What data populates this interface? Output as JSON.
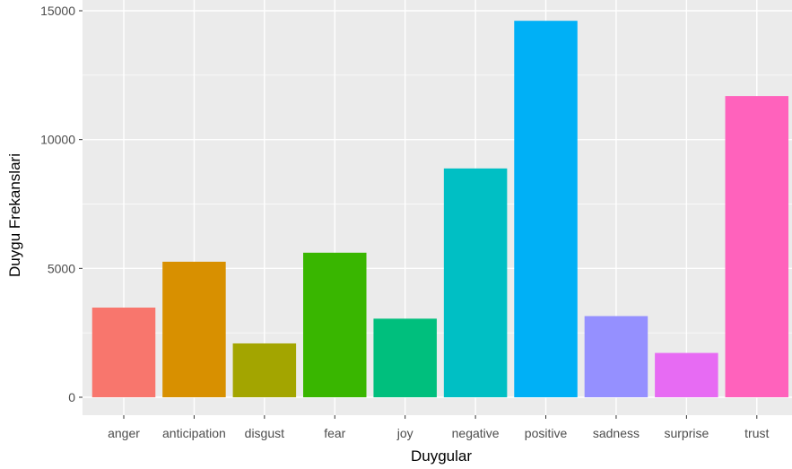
{
  "chart_data": {
    "type": "bar",
    "xlabel": "Duygular",
    "ylabel": "Duygu Frekanslari",
    "categories": [
      "anger",
      "anticipation",
      "disgust",
      "fear",
      "joy",
      "negative",
      "positive",
      "sadness",
      "surprise",
      "trust"
    ],
    "values": [
      3480,
      5260,
      2090,
      5610,
      3050,
      8880,
      14610,
      3150,
      1720,
      11690
    ],
    "colors": [
      "#F8766D",
      "#D89000",
      "#A3A500",
      "#39B600",
      "#00BF7D",
      "#00BFC4",
      "#00B0F6",
      "#9590FF",
      "#E76BF3",
      "#FF62BC"
    ],
    "y_ticks": [
      0,
      5000,
      10000,
      15000
    ],
    "ylim": [
      0,
      15300
    ],
    "grid": true,
    "legend": "none",
    "panel_background": "#EBEBEB",
    "gridline_color": "#FFFFFF"
  }
}
